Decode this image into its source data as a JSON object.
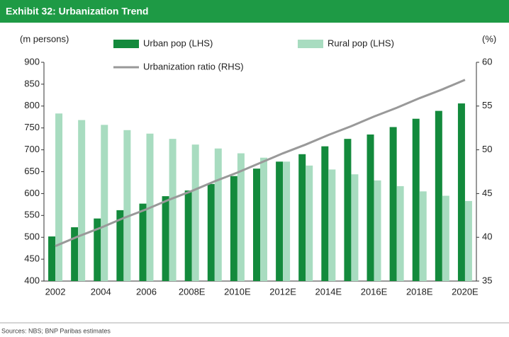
{
  "chart_data": {
    "type": "bar",
    "title": "Exhibit 32: Urbanization Trend",
    "y_label": "(m persons)",
    "y2_label": "(%)",
    "source": "Sources: NBS; BNP Paribas estimates",
    "categories": [
      "2002",
      null,
      "2004",
      null,
      "2006",
      null,
      "2008E",
      null,
      "2010E",
      null,
      "2012E",
      null,
      "2014E",
      null,
      "2016E",
      null,
      "2018E",
      null,
      "2020E"
    ],
    "series": [
      {
        "name": "Urban pop (LHS)",
        "color": "#138a3c",
        "values": [
          502,
          523,
          543,
          562,
          577,
          594,
          607,
          622,
          640,
          657,
          673,
          690,
          708,
          725,
          735,
          752,
          771,
          789,
          806
        ]
      },
      {
        "name": "Rural pop (LHS)",
        "color": "#a8dcc0",
        "values": [
          783,
          768,
          757,
          745,
          737,
          725,
          712,
          703,
          692,
          682,
          673,
          664,
          655,
          644,
          630,
          617,
          605,
          595,
          583
        ]
      },
      {
        "name": "Urbanization ratio (RHS)",
        "color": "#999999",
        "type": "line",
        "axis": "y2",
        "values": [
          39,
          40.1,
          41.1,
          42.2,
          43.2,
          44.3,
          45.3,
          46.4,
          47.4,
          48.5,
          49.6,
          50.6,
          51.7,
          52.7,
          53.8,
          54.8,
          55.9,
          56.9,
          58
        ]
      }
    ],
    "ylim": [
      400,
      900
    ],
    "yticks": [
      400,
      450,
      500,
      550,
      600,
      650,
      700,
      750,
      800,
      850,
      900
    ],
    "y2lim": [
      35,
      60
    ],
    "y2ticks": [
      35,
      40,
      45,
      50,
      55,
      60
    ]
  }
}
